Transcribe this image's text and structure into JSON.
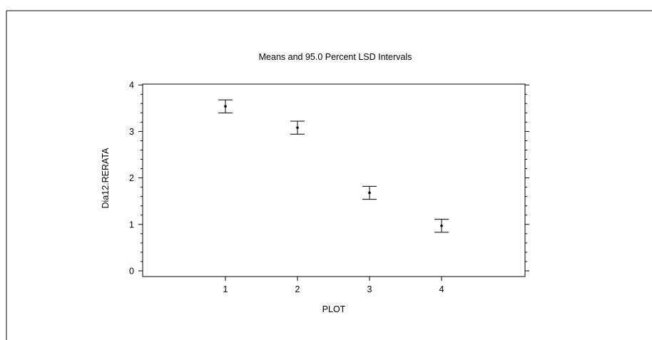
{
  "chart_data": {
    "type": "scatter",
    "title": "Means and 95.0 Percent LSD Intervals",
    "xlabel": "PLOT",
    "ylabel": "Dia12.RERATA",
    "categories": [
      "1",
      "2",
      "3",
      "4"
    ],
    "values": [
      3.54,
      3.08,
      1.68,
      0.97
    ],
    "lower": [
      3.4,
      2.94,
      1.54,
      0.83
    ],
    "upper": [
      3.68,
      3.22,
      1.82,
      1.11
    ],
    "yticks": [
      "0",
      "1",
      "2",
      "3",
      "4"
    ],
    "ylim": [
      -0.1,
      4.1
    ],
    "grid": false,
    "color": "#000000"
  }
}
